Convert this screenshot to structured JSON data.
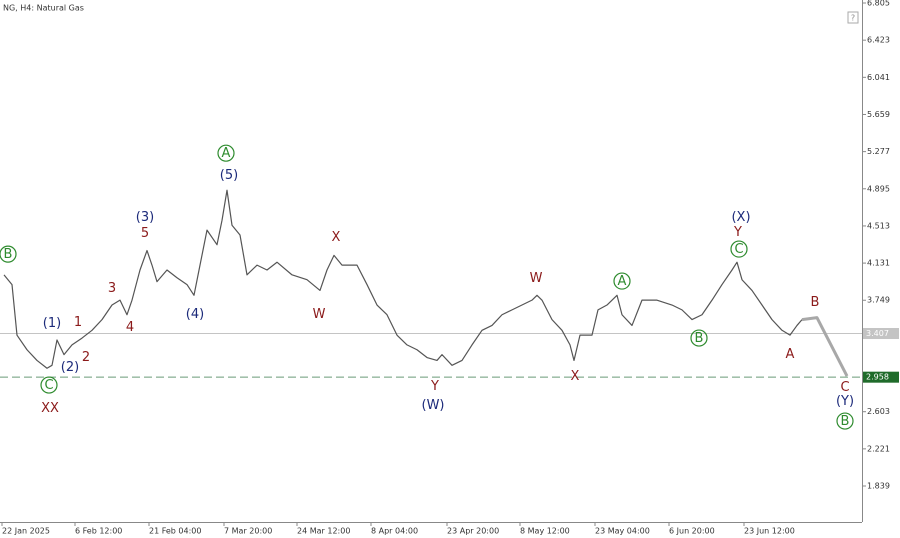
{
  "chart_data": {
    "type": "line",
    "title": "NG, H4: Natural Gas",
    "xlim": [
      -0.4,
      172
    ],
    "ylim": [
      1.469,
      6.836
    ],
    "xticks": [
      {
        "value": 0,
        "label": "22 Jan 2025"
      },
      {
        "value": 14.6,
        "label": "6 Feb 12:00"
      },
      {
        "value": 29.4,
        "label": "21 Feb 04:00"
      },
      {
        "value": 44.4,
        "label": "7 Mar 20:00"
      },
      {
        "value": 59,
        "label": "24 Mar 12:00"
      },
      {
        "value": 73.8,
        "label": "8 Apr 04:00"
      },
      {
        "value": 89,
        "label": "23 Apr 20:00"
      },
      {
        "value": 103.6,
        "label": "8 May 12:00"
      },
      {
        "value": 118.6,
        "label": "23 May 04:00"
      },
      {
        "value": 133.4,
        "label": "6 Jun 20:00"
      },
      {
        "value": 148.4,
        "label": "23 Jun 12:00"
      }
    ],
    "yticks": [
      6.805,
      6.423,
      6.041,
      5.659,
      5.277,
      4.895,
      4.513,
      4.131,
      3.749,
      2.603,
      2.221,
      1.839
    ],
    "series": [
      {
        "color": "#555555",
        "width": 1.2,
        "x": [
          0.4,
          2,
          3,
          5,
          7,
          9,
          10,
          11,
          12.4,
          14,
          16,
          18,
          20,
          22,
          23.6,
          25,
          26,
          27.6,
          29,
          30,
          31,
          33,
          35,
          37,
          38.4,
          39.6,
          41,
          43,
          44,
          45,
          46,
          47.6,
          49,
          51,
          53,
          55,
          58,
          61,
          63.6,
          65,
          66.4,
          68,
          71,
          73,
          75,
          77,
          79,
          81,
          83,
          85,
          87,
          88,
          90,
          92,
          94,
          96,
          98,
          100,
          102,
          104,
          106,
          107,
          108,
          110,
          112,
          113.6,
          114.4,
          115.6,
          118,
          119.2,
          121,
          123,
          124,
          126,
          128,
          131,
          134,
          136,
          138,
          140,
          142,
          144,
          146,
          147,
          148,
          150,
          152,
          154,
          156,
          157.6,
          159,
          160
        ],
        "values": [
          4.01,
          3.91,
          3.39,
          3.24,
          3.13,
          3.05,
          3.08,
          3.34,
          3.19,
          3.29,
          3.36,
          3.44,
          3.55,
          3.7,
          3.75,
          3.6,
          3.75,
          4.06,
          4.26,
          4.11,
          3.94,
          4.06,
          3.98,
          3.91,
          3.8,
          4.11,
          4.47,
          4.32,
          4.57,
          4.88,
          4.52,
          4.42,
          4.01,
          4.11,
          4.06,
          4.14,
          4.01,
          3.96,
          3.85,
          4.06,
          4.21,
          4.11,
          4.11,
          3.91,
          3.7,
          3.6,
          3.39,
          3.29,
          3.24,
          3.16,
          3.13,
          3.19,
          3.08,
          3.13,
          3.29,
          3.44,
          3.49,
          3.6,
          3.65,
          3.7,
          3.75,
          3.8,
          3.75,
          3.55,
          3.44,
          3.29,
          3.13,
          3.39,
          3.39,
          3.65,
          3.7,
          3.8,
          3.6,
          3.49,
          3.75,
          3.75,
          3.7,
          3.65,
          3.55,
          3.6,
          3.75,
          3.91,
          4.06,
          4.14,
          3.96,
          3.85,
          3.7,
          3.55,
          3.44,
          3.39,
          3.49,
          3.55
        ]
      },
      {
        "color": "#a8a8a8",
        "width": 3,
        "x": [
          160,
          163,
          169
        ],
        "values": [
          3.55,
          3.57,
          2.97
        ]
      }
    ],
    "hlines": [
      {
        "value": 3.407,
        "color": "#c4c4c4",
        "dashed": false,
        "box": "#c4c4c4"
      },
      {
        "value": 2.958,
        "color": "#6a9a78",
        "dashed": true,
        "box": "#1f6b2a"
      }
    ],
    "annotations": [
      {
        "text": "B",
        "x": 1.2,
        "y": 4.223,
        "color": "#2e8b2e",
        "circled": true
      },
      {
        "text": "(1)",
        "x": 10,
        "y": 3.514,
        "color": "#1c2a7a"
      },
      {
        "text": "1",
        "x": 15.2,
        "y": 3.524,
        "color": "#8b1a1a"
      },
      {
        "text": "(2)",
        "x": 13.6,
        "y": 3.062,
        "color": "#1c2a7a"
      },
      {
        "text": "2",
        "x": 16.8,
        "y": 3.165,
        "color": "#8b1a1a"
      },
      {
        "text": "3",
        "x": 22,
        "y": 3.874,
        "color": "#8b1a1a"
      },
      {
        "text": "4",
        "x": 25.6,
        "y": 3.473,
        "color": "#8b1a1a"
      },
      {
        "text": "(3)",
        "x": 28.6,
        "y": 4.604,
        "color": "#1c2a7a"
      },
      {
        "text": "5",
        "x": 28.6,
        "y": 4.439,
        "color": "#8b1a1a"
      },
      {
        "text": "(4)",
        "x": 38.6,
        "y": 3.607,
        "color": "#1c2a7a"
      },
      {
        "text": "A",
        "x": 44.8,
        "y": 5.261,
        "color": "#2e8b2e",
        "circled": true
      },
      {
        "text": "(5)",
        "x": 45.4,
        "y": 5.035,
        "color": "#1c2a7a"
      },
      {
        "text": "C",
        "x": 9.4,
        "y": 2.877,
        "color": "#2e8b2e",
        "circled": true
      },
      {
        "text": "XX",
        "x": 9.6,
        "y": 2.641,
        "color": "#8b1a1a",
        "large": true
      },
      {
        "text": "X",
        "x": 66.8,
        "y": 4.398,
        "color": "#8b1a1a"
      },
      {
        "text": "W",
        "x": 63.4,
        "y": 3.607,
        "color": "#8b1a1a"
      },
      {
        "text": "Y",
        "x": 86.6,
        "y": 2.867,
        "color": "#8b1a1a"
      },
      {
        "text": "(W)",
        "x": 86.2,
        "y": 2.671,
        "color": "#1c2a7a"
      },
      {
        "text": "W",
        "x": 106.8,
        "y": 3.977,
        "color": "#8b1a1a"
      },
      {
        "text": "X",
        "x": 114.6,
        "y": 2.97,
        "color": "#8b1a1a"
      },
      {
        "text": "A",
        "x": 124,
        "y": 3.946,
        "color": "#2e8b2e",
        "circled": true
      },
      {
        "text": "B",
        "x": 139.4,
        "y": 3.36,
        "color": "#2e8b2e",
        "circled": true
      },
      {
        "text": "(X)",
        "x": 147.8,
        "y": 4.604,
        "color": "#1c2a7a"
      },
      {
        "text": "Y",
        "x": 147.2,
        "y": 4.449,
        "color": "#8b1a1a"
      },
      {
        "text": "C",
        "x": 147.4,
        "y": 4.275,
        "color": "#2e8b2e",
        "circled": true
      },
      {
        "text": "B",
        "x": 162.6,
        "y": 3.73,
        "color": "#8b1a1a"
      },
      {
        "text": "A",
        "x": 157.6,
        "y": 3.196,
        "color": "#8b1a1a"
      },
      {
        "text": "C",
        "x": 168.6,
        "y": 2.856,
        "color": "#8b1a1a"
      },
      {
        "text": "(Y)",
        "x": 168.6,
        "y": 2.713,
        "color": "#1c2a7a"
      },
      {
        "text": "B",
        "x": 168.6,
        "y": 2.507,
        "color": "#2e8b2e",
        "circled": true
      }
    ]
  }
}
